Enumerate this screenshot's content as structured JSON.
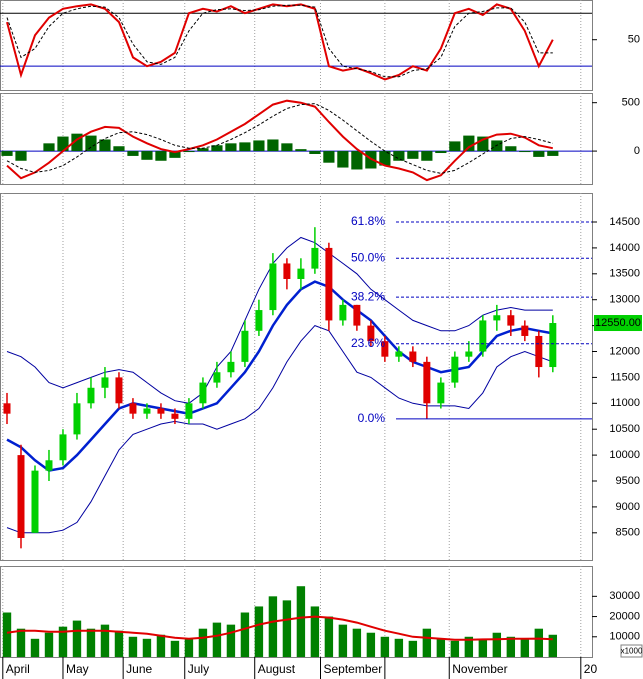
{
  "chart_data": [
    {
      "type": "line",
      "name": "stochastic",
      "xlim": [
        -0.5,
        41.8
      ],
      "ylim": [
        -7,
        95
      ],
      "yticks": [
        50
      ],
      "levels": [
        80,
        20
      ],
      "level_colors": [
        "#000000",
        "#0000c0"
      ],
      "series": [
        {
          "color": "#e00000",
          "dash": false,
          "values": [
            70,
            10,
            55,
            75,
            85,
            88,
            90,
            85,
            70,
            30,
            20,
            25,
            35,
            80,
            85,
            82,
            88,
            80,
            85,
            90,
            88,
            90,
            85,
            20,
            15,
            18,
            12,
            5,
            10,
            20,
            15,
            40,
            80,
            85,
            78,
            90,
            85,
            60,
            20,
            50
          ]
        },
        {
          "color": "#000000",
          "dash": true,
          "values": [
            75,
            30,
            40,
            65,
            80,
            85,
            88,
            87,
            75,
            45,
            25,
            22,
            30,
            60,
            80,
            84,
            85,
            83,
            84,
            88,
            89,
            89,
            87,
            40,
            20,
            17,
            14,
            8,
            8,
            15,
            17,
            30,
            65,
            80,
            82,
            86,
            86,
            70,
            35,
            35
          ]
        }
      ]
    },
    {
      "type": "combo",
      "name": "macd",
      "xlim": [
        -0.5,
        41.8
      ],
      "ylim": [
        -340,
        600
      ],
      "yticks": [
        0,
        500
      ],
      "zero_color": "#0000c0",
      "histogram": {
        "up_color": "#006400",
        "down_color": "#006400",
        "values": [
          -50,
          -100,
          0,
          80,
          150,
          180,
          160,
          120,
          50,
          -50,
          -90,
          -100,
          -70,
          -10,
          30,
          60,
          80,
          90,
          110,
          120,
          80,
          20,
          -30,
          -120,
          -170,
          -190,
          -180,
          -150,
          -100,
          -80,
          -100,
          -20,
          100,
          160,
          150,
          110,
          50,
          -10,
          -60,
          -50
        ]
      },
      "series": [
        {
          "color": "#e00000",
          "dash": false,
          "values": [
            -150,
            -280,
            -220,
            -120,
            0,
            120,
            200,
            250,
            240,
            150,
            80,
            20,
            -10,
            20,
            60,
            120,
            200,
            280,
            380,
            480,
            520,
            500,
            460,
            300,
            150,
            20,
            -80,
            -150,
            -180,
            -220,
            -300,
            -250,
            -100,
            40,
            120,
            170,
            180,
            140,
            60,
            30
          ]
        },
        {
          "color": "#000000",
          "dash": true,
          "values": [
            -100,
            -180,
            -220,
            -200,
            -150,
            -60,
            40,
            130,
            190,
            200,
            170,
            120,
            60,
            30,
            30,
            60,
            120,
            190,
            270,
            360,
            440,
            480,
            490,
            420,
            320,
            210,
            100,
            0,
            -80,
            -140,
            -200,
            -230,
            -200,
            -120,
            -30,
            60,
            130,
            150,
            120,
            80
          ]
        }
      ]
    },
    {
      "type": "candlestick",
      "name": "price",
      "xlim": [
        -0.5,
        41.8
      ],
      "ylim": [
        7975,
        15060
      ],
      "yticks": [
        8500,
        9000,
        9500,
        10000,
        10500,
        11000,
        11500,
        12000,
        12500,
        13000,
        13500,
        14000,
        14500
      ],
      "up_color": "#00d000",
      "down_color": "#e00000",
      "open": [
        11000,
        10000,
        8500,
        9700,
        9900,
        10400,
        11000,
        11300,
        11500,
        11000,
        10800,
        10900,
        10800,
        10700,
        11000,
        11400,
        11600,
        11800,
        12400,
        12800,
        13700,
        13400,
        13600,
        14000,
        12600,
        12900,
        12500,
        12200,
        11900,
        12000,
        11800,
        11000,
        11400,
        11900,
        12000,
        12600,
        12700,
        12500,
        12300,
        11700
      ],
      "high": [
        11200,
        10200,
        9800,
        10100,
        10500,
        11200,
        11500,
        11700,
        11600,
        11100,
        11000,
        11000,
        10900,
        11100,
        11500,
        11800,
        12000,
        12600,
        13000,
        13900,
        13800,
        13800,
        14400,
        14100,
        13000,
        12900,
        12600,
        12300,
        12100,
        12100,
        11900,
        11500,
        12000,
        12200,
        12700,
        12900,
        12800,
        12600,
        12400,
        12700
      ],
      "low": [
        10600,
        8200,
        8500,
        9500,
        9800,
        10300,
        10900,
        11100,
        10900,
        10700,
        10700,
        10700,
        10600,
        10600,
        10900,
        11300,
        11500,
        11700,
        12300,
        12700,
        13200,
        13200,
        13500,
        12400,
        12500,
        12400,
        12100,
        11800,
        11800,
        11700,
        10700,
        10900,
        11300,
        11800,
        11900,
        12400,
        12300,
        12200,
        11500,
        11600
      ],
      "close": [
        10800,
        8400,
        9700,
        9900,
        10400,
        11000,
        11300,
        11500,
        11000,
        10800,
        10900,
        10800,
        10700,
        11000,
        11400,
        11600,
        11800,
        12400,
        12800,
        13700,
        13400,
        13600,
        14000,
        12600,
        12900,
        12500,
        12200,
        11900,
        12000,
        11800,
        11000,
        11400,
        11900,
        12000,
        12600,
        12700,
        12500,
        12300,
        11700,
        12550
      ],
      "last_label": "12550.00",
      "last_color": "#00d000",
      "bands": [
        {
          "color": "#0000a0",
          "width": 1,
          "values": [
            12000,
            11900,
            11700,
            11400,
            11300,
            11400,
            11500,
            11600,
            11650,
            11600,
            11400,
            11200,
            11050,
            11000,
            11200,
            11700,
            12000,
            12600,
            13200,
            13700,
            14000,
            14200,
            14100,
            13900,
            13700,
            13500,
            13200,
            13000,
            12800,
            12600,
            12500,
            12400,
            12400,
            12500,
            12700,
            12800,
            12850,
            12800,
            12800,
            12800
          ]
        },
        {
          "color": "#0020d0",
          "width": 2.5,
          "values": [
            10300,
            10150,
            9900,
            9700,
            9750,
            10000,
            10300,
            10600,
            10900,
            11000,
            10950,
            10900,
            10850,
            10800,
            10900,
            11000,
            11300,
            11600,
            12000,
            12500,
            12900,
            13200,
            13350,
            13250,
            13000,
            12800,
            12600,
            12300,
            12000,
            11800,
            11700,
            11600,
            11650,
            11700,
            12000,
            12300,
            12400,
            12450,
            12400,
            12350
          ]
        },
        {
          "color": "#0000a0",
          "width": 1,
          "values": [
            8600,
            8500,
            8500,
            8500,
            8550,
            8700,
            9100,
            9600,
            10100,
            10400,
            10500,
            10600,
            10650,
            10600,
            10600,
            10500,
            10600,
            10700,
            10900,
            11300,
            11800,
            12200,
            12500,
            12400,
            12000,
            11600,
            11500,
            11300,
            11100,
            11000,
            10950,
            10950,
            10950,
            10900,
            11200,
            11700,
            11900,
            12000,
            11900,
            11800
          ]
        }
      ],
      "fib_color": "#0000c0",
      "fib": [
        {
          "label": "61.8%",
          "value": 14500
        },
        {
          "label": "50.0%",
          "value": 13800
        },
        {
          "label": "38.2%",
          "value": 13050
        },
        {
          "label": "23.6%",
          "value": 12150
        },
        {
          "label": "0.0%",
          "value": 10700
        }
      ]
    },
    {
      "type": "bar",
      "name": "volume",
      "xlim": [
        -0.5,
        41.8
      ],
      "ylim": [
        0,
        45000
      ],
      "yticks": [
        10000,
        20000,
        30000
      ],
      "unit_label": "x1000",
      "color": "#008000",
      "values": [
        22000,
        14000,
        9000,
        12000,
        15000,
        18000,
        14000,
        16000,
        13000,
        10000,
        9000,
        11000,
        8000,
        9000,
        14000,
        17000,
        16000,
        22000,
        25000,
        30000,
        28000,
        35000,
        25000,
        20000,
        16000,
        14000,
        12000,
        10000,
        9000,
        8000,
        14000,
        9000,
        8000,
        10000,
        9000,
        12000,
        10000,
        9000,
        14000,
        11000
      ],
      "average": {
        "color": "#e00000",
        "values": [
          12000,
          13000,
          13000,
          12500,
          12500,
          13000,
          13000,
          13000,
          12500,
          12000,
          11500,
          10500,
          9500,
          9000,
          9500,
          10500,
          12000,
          14000,
          16000,
          17500,
          18500,
          19500,
          20000,
          19500,
          18500,
          17000,
          15000,
          13000,
          11500,
          10000,
          9500,
          9000,
          8500,
          8500,
          8700,
          8800,
          9000,
          9000,
          9100,
          8800
        ]
      },
      "xticks": [
        {
          "value": -0.3,
          "label": "April"
        },
        {
          "value": 4.0,
          "label": "May"
        },
        {
          "value": 8.3,
          "label": "June"
        },
        {
          "value": 12.7,
          "label": "July"
        },
        {
          "value": 17.7,
          "label": "August"
        },
        {
          "value": 22.4,
          "label": "September"
        },
        {
          "value": 27.0,
          "label": null
        },
        {
          "value": 31.6,
          "label": "November"
        },
        {
          "value": 41.0,
          "label": "20"
        }
      ]
    }
  ]
}
